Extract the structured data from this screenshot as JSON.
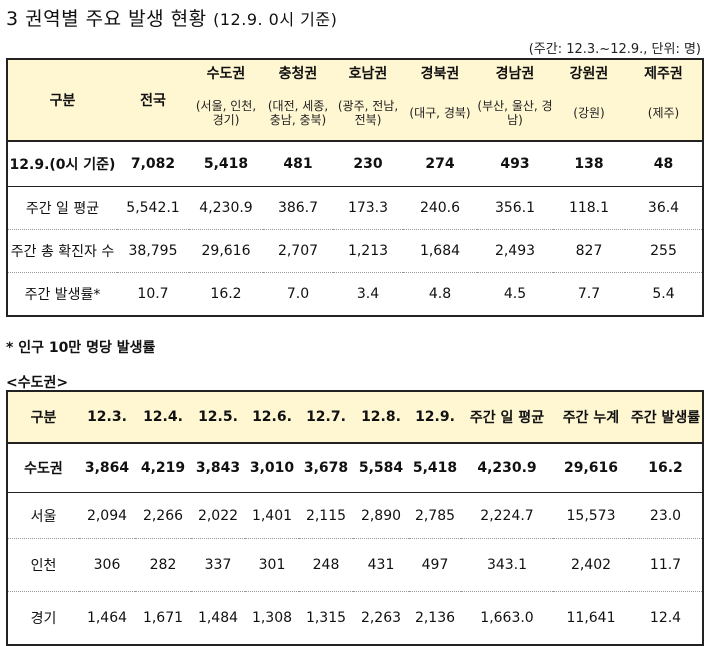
{
  "title": {
    "main": "3 권역별 주요 발생 현황",
    "sub": "(12.9. 0시 기준)"
  },
  "unit_note": "(주간: 12.3.~12.9., 단위: 명)",
  "table1": {
    "corner": "구분",
    "national": "전국",
    "regions": [
      {
        "name": "수도권",
        "detail": "(서울, 인천, 경기)"
      },
      {
        "name": "충청권",
        "detail": "(대전, 세종, 충남, 충북)"
      },
      {
        "name": "호남권",
        "detail": "(광주, 전남, 전북)"
      },
      {
        "name": "경북권",
        "detail": "(대구, 경북)"
      },
      {
        "name": "경남권",
        "detail": "(부산, 울산, 경남)"
      },
      {
        "name": "강원권",
        "detail": "(강원)"
      },
      {
        "name": "제주권",
        "detail": "(제주)"
      }
    ],
    "rows": [
      {
        "label": "12.9.(0시 기준)",
        "values": [
          "7,082",
          "5,418",
          "481",
          "230",
          "274",
          "493",
          "138",
          "48"
        ]
      },
      {
        "label": "주간 일 평균",
        "values": [
          "5,542.1",
          "4,230.9",
          "386.7",
          "173.3",
          "240.6",
          "356.1",
          "118.1",
          "36.4"
        ]
      },
      {
        "label": "주간 총 확진자 수",
        "values": [
          "38,795",
          "29,616",
          "2,707",
          "1,213",
          "1,684",
          "2,493",
          "827",
          "255"
        ]
      },
      {
        "label": "주간 발생률*",
        "values": [
          "10.7",
          "16.2",
          "7.0",
          "3.4",
          "4.8",
          "4.5",
          "7.7",
          "5.4"
        ]
      }
    ]
  },
  "footnote": "* 인구 10만 명당 발생률",
  "subhead": "<수도권>",
  "table2": {
    "headers": [
      "구분",
      "12.3.",
      "12.4.",
      "12.5.",
      "12.6.",
      "12.7.",
      "12.8.",
      "12.9.",
      "주간 일 평균",
      "주간 누계",
      "주간 발생률"
    ],
    "rows": [
      {
        "label": "수도권",
        "values": [
          "3,864",
          "4,219",
          "3,843",
          "3,010",
          "3,678",
          "5,584",
          "5,418",
          "4,230.9",
          "29,616",
          "16.2"
        ]
      },
      {
        "label": "서울",
        "values": [
          "2,094",
          "2,266",
          "2,022",
          "1,401",
          "2,115",
          "2,890",
          "2,785",
          "2,224.7",
          "15,573",
          "23.0"
        ]
      },
      {
        "label": "인천",
        "values": [
          "306",
          "282",
          "337",
          "301",
          "248",
          "431",
          "497",
          "343.1",
          "2,402",
          "11.7"
        ]
      },
      {
        "label": "경기",
        "values": [
          "1,464",
          "1,671",
          "1,484",
          "1,308",
          "1,315",
          "2,263",
          "2,136",
          "1,663.0",
          "11,641",
          "12.4"
        ]
      }
    ]
  }
}
